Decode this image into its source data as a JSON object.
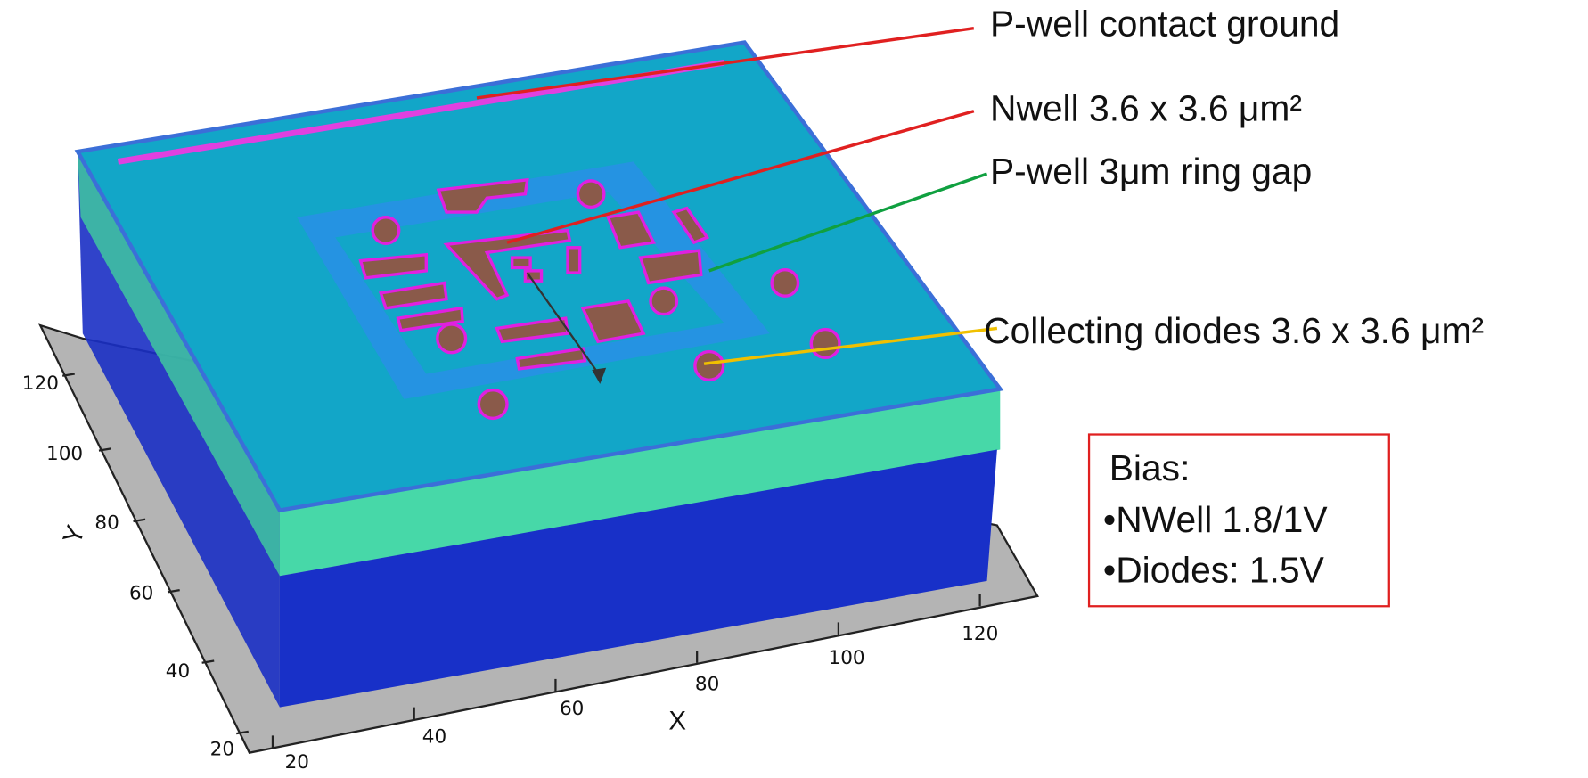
{
  "annotations": [
    "P-well contact ground",
    "Nwell 3.6 x 3.6 μm²",
    "P-well 3μm ring gap",
    "Collecting diodes 3.6 x 3.6 μm²"
  ],
  "bias": {
    "title": "Bias:",
    "items": [
      "•NWell 1.8/1V",
      "•Diodes: 1.5V"
    ]
  },
  "axes": {
    "x": {
      "title": "X",
      "ticks": [
        20,
        40,
        60,
        80,
        100,
        120
      ]
    },
    "y": {
      "title": "Y",
      "ticks": [
        20,
        40,
        60,
        80,
        100,
        120
      ]
    }
  }
}
